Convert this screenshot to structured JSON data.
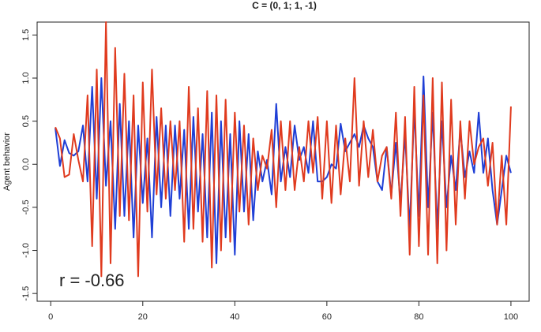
{
  "chart_data": {
    "type": "line",
    "title": "C = (0, 1; 1, -1)",
    "y_label": "Agent behavior",
    "annotation": "r = -0.66",
    "x": [
      1,
      2,
      3,
      4,
      5,
      6,
      7,
      8,
      9,
      10,
      11,
      12,
      13,
      14,
      15,
      16,
      17,
      18,
      19,
      20,
      21,
      22,
      23,
      24,
      25,
      26,
      27,
      28,
      29,
      30,
      31,
      32,
      33,
      34,
      35,
      36,
      37,
      38,
      39,
      40,
      41,
      42,
      43,
      44,
      45,
      46,
      47,
      48,
      49,
      50,
      51,
      52,
      53,
      54,
      55,
      56,
      57,
      58,
      59,
      60,
      61,
      62,
      63,
      64,
      65,
      66,
      67,
      68,
      69,
      70,
      71,
      72,
      73,
      74,
      75,
      76,
      77,
      78,
      79,
      80,
      81,
      82,
      83,
      84,
      85,
      86,
      87,
      88,
      89,
      90,
      91,
      92,
      93,
      94,
      95,
      96,
      97,
      98,
      99,
      100
    ],
    "series": [
      {
        "color": "#1f3fd6",
        "values": [
          0.42,
          -0.02,
          0.28,
          0.13,
          0.1,
          0.15,
          0.45,
          -0.2,
          0.9,
          -0.4,
          1.0,
          -0.25,
          0.5,
          -0.75,
          0.7,
          -0.6,
          0.5,
          -0.85,
          0.45,
          -0.45,
          0.3,
          -0.85,
          0.55,
          -0.5,
          0.45,
          -0.6,
          0.45,
          -0.4,
          0.4,
          -0.75,
          0.55,
          -0.55,
          0.35,
          -0.85,
          0.6,
          -1.15,
          0.5,
          -0.85,
          0.35,
          -1.05,
          0.5,
          -0.55,
          0.35,
          -0.65,
          0.15,
          -0.2,
          0.05,
          -0.35,
          0.7,
          -0.2,
          0.2,
          -0.15,
          0.45,
          0.05,
          0.2,
          -0.1,
          0.5,
          -0.2,
          -0.2,
          -0.15,
          0.0,
          -0.05,
          0.47,
          0.15,
          0.25,
          0.35,
          0.2,
          0.45,
          0.3,
          0.2,
          -0.2,
          -0.3,
          0.2,
          -0.35,
          0.25,
          -0.45,
          0.35,
          -0.75,
          0.65,
          -0.6,
          1.02,
          -0.5,
          0.6,
          -0.75,
          0.5,
          -0.5,
          0.1,
          -0.3,
          0.4,
          -0.15,
          0.15,
          -0.1,
          0.6,
          -0.1,
          0.3,
          -0.3,
          -0.7,
          -0.3,
          0.1,
          -0.1
        ]
      },
      {
        "color": "#e03a1e",
        "values": [
          0.43,
          0.3,
          -0.15,
          -0.12,
          0.35,
          0.05,
          -0.2,
          0.8,
          -0.95,
          1.1,
          -1.3,
          1.65,
          -1.15,
          1.35,
          -0.6,
          1.05,
          -0.65,
          0.8,
          -1.3,
          0.95,
          -0.55,
          1.1,
          -0.35,
          0.65,
          -0.4,
          0.5,
          -0.3,
          0.5,
          -0.9,
          0.9,
          -0.75,
          0.65,
          -0.9,
          0.85,
          -1.2,
          0.8,
          -1.0,
          0.75,
          -0.9,
          0.6,
          -0.55,
          0.45,
          -0.7,
          0.3,
          -0.3,
          0.1,
          -0.05,
          0.4,
          -0.5,
          0.5,
          -0.3,
          0.5,
          -0.3,
          0.2,
          -0.2,
          0.5,
          -0.1,
          0.55,
          -0.4,
          0.5,
          -0.45,
          0.45,
          -0.35,
          0.3,
          -0.2,
          1.0,
          -0.25,
          0.5,
          -0.15,
          0.4,
          -0.2,
          0.1,
          0.2,
          -0.4,
          0.6,
          -0.6,
          0.55,
          -1.05,
          0.9,
          -0.95,
          0.8,
          -1.05,
          1.0,
          -1.15,
          0.95,
          -1.0,
          0.75,
          -0.7,
          0.5,
          -0.4,
          0.5,
          0.0,
          0.2,
          0.3,
          -0.25,
          0.25,
          -0.7,
          0.1,
          -0.7,
          0.67
        ]
      }
    ],
    "xlim": [
      -2.96,
      103.96
    ],
    "ylim": [
      -1.59,
      1.65
    ],
    "xticks": [
      0,
      20,
      40,
      60,
      80,
      100
    ],
    "yticks": [
      -1.5,
      {
        "value": -1,
        "label": "-1.0"
      },
      -0.5,
      {
        "value": 0,
        "label": "0.0"
      },
      0.5,
      {
        "value": 1,
        "label": "1.0"
      },
      1.5
    ]
  }
}
